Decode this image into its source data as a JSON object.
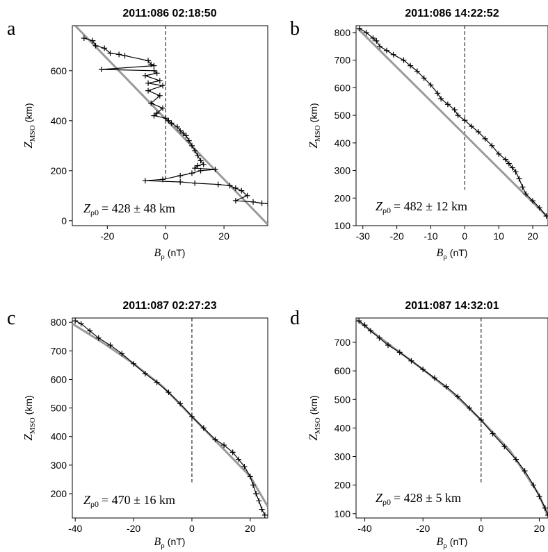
{
  "figure": {
    "panels": [
      {
        "letter": "a",
        "title": "2011:086 02:18:50",
        "ylabel_main": "Z",
        "ylabel_sub": "MSO",
        "ylabel_unit": "(km)",
        "xlabel_main": "B",
        "xlabel_sub": "ρ",
        "xlabel_unit": "(nT)",
        "fit_label_main": "Z",
        "fit_label_sub": "ρ0",
        "fit_label_value": "= 428 ± 48 km"
      },
      {
        "letter": "b",
        "title": "2011:086 14:22:52",
        "ylabel_main": "Z",
        "ylabel_sub": "MSO",
        "ylabel_unit": "(km)",
        "xlabel_main": "B",
        "xlabel_sub": "ρ",
        "xlabel_unit": "(nT)",
        "fit_label_main": "Z",
        "fit_label_sub": "ρ0",
        "fit_label_value": "= 482 ± 12 km"
      },
      {
        "letter": "c",
        "title": "2011:087 02:27:23",
        "ylabel_main": "Z",
        "ylabel_sub": "MSO",
        "ylabel_unit": "(km)",
        "xlabel_main": "B",
        "xlabel_sub": "ρ",
        "xlabel_unit": "(nT)",
        "fit_label_main": "Z",
        "fit_label_sub": "ρ0",
        "fit_label_value": "= 470 ± 16 km"
      },
      {
        "letter": "d",
        "title": "2011:087 14:32:01",
        "ylabel_main": "Z",
        "ylabel_sub": "MSO",
        "ylabel_unit": "(km)",
        "xlabel_main": "B",
        "xlabel_sub": "ρ",
        "xlabel_unit": "(nT)",
        "fit_label_main": "Z",
        "fit_label_sub": "ρ0",
        "fit_label_value": "= 428 ± 5 km"
      }
    ]
  },
  "colors": {
    "data": "#000000",
    "fit": "#9a9a9a",
    "zero_line": "#000000"
  },
  "chart_data": [
    {
      "type": "line",
      "panel": "a",
      "title": "2011:086 02:18:50",
      "xlabel": "Bρ (nT)",
      "ylabel": "ZMSO (km)",
      "xlim": [
        -32,
        35
      ],
      "ylim": [
        -20,
        780
      ],
      "xticks": [
        -20,
        0,
        20
      ],
      "yticks": [
        0,
        200,
        400,
        600
      ],
      "zero_line": {
        "x": 0,
        "y_range": [
          160,
          780
        ]
      },
      "fit_value_km": 428,
      "fit_uncertainty_km": 48,
      "series": [
        {
          "role": "measured",
          "markers": "+",
          "x": [
            -28,
            -25,
            -24,
            -21,
            -19,
            -16,
            -14,
            -6,
            -5,
            -4,
            -22,
            -4,
            -3,
            -7,
            -2,
            -6,
            -1,
            -6,
            -2,
            -5,
            -1,
            -3,
            -4,
            0,
            1,
            2,
            4,
            5,
            6,
            7,
            8,
            9,
            10,
            11,
            12,
            13,
            11,
            10,
            17,
            12,
            9,
            5,
            -1,
            -7,
            5,
            10,
            18,
            22,
            24,
            26,
            28,
            24,
            30,
            33,
            35
          ],
          "y": [
            730,
            720,
            700,
            690,
            670,
            665,
            660,
            640,
            625,
            620,
            605,
            600,
            590,
            580,
            560,
            550,
            540,
            520,
            500,
            470,
            450,
            430,
            420,
            410,
            400,
            390,
            375,
            360,
            350,
            340,
            320,
            300,
            280,
            260,
            240,
            225,
            220,
            210,
            205,
            200,
            190,
            180,
            165,
            160,
            155,
            150,
            145,
            140,
            130,
            120,
            100,
            80,
            75,
            70,
            68
          ]
        },
        {
          "role": "fit",
          "x": [
            -31,
            35
          ],
          "y": [
            780,
            -15
          ]
        }
      ]
    },
    {
      "type": "line",
      "panel": "b",
      "title": "2011:086 14:22:52",
      "xlabel": "Bρ (nT)",
      "ylabel": "ZMSO (km)",
      "xlim": [
        -32,
        24.5
      ],
      "ylim": [
        100,
        825
      ],
      "xticks": [
        -30,
        -20,
        -10,
        0,
        10,
        20
      ],
      "yticks": [
        100,
        200,
        300,
        400,
        500,
        600,
        700,
        800
      ],
      "zero_line": {
        "x": 0,
        "y_range": [
          230,
          825
        ]
      },
      "fit_value_km": 482,
      "fit_uncertainty_km": 12,
      "series": [
        {
          "role": "measured",
          "markers": "+",
          "x": [
            -31,
            -29,
            -27,
            -26,
            -25,
            -23,
            -21,
            -18,
            -16,
            -14,
            -12,
            -10,
            -8,
            -7,
            -5,
            -3,
            -2,
            0,
            2,
            4,
            6,
            8,
            10,
            12,
            13,
            14,
            15,
            16,
            17,
            18,
            20,
            22,
            24
          ],
          "y": [
            815,
            800,
            780,
            770,
            750,
            735,
            720,
            700,
            680,
            660,
            635,
            610,
            580,
            560,
            540,
            520,
            500,
            482,
            460,
            440,
            415,
            390,
            360,
            340,
            325,
            310,
            295,
            270,
            240,
            215,
            190,
            165,
            135
          ]
        },
        {
          "role": "fit",
          "x": [
            -31.5,
            24.5
          ],
          "y": [
            815,
            130
          ]
        }
      ]
    },
    {
      "type": "line",
      "panel": "c",
      "title": "2011:087 02:27:23",
      "xlabel": "Bρ (nT)",
      "ylabel": "ZMSO (km)",
      "xlim": [
        -41,
        26
      ],
      "ylim": [
        115,
        815
      ],
      "xticks": [
        -40,
        -20,
        0,
        20
      ],
      "yticks": [
        200,
        300,
        400,
        500,
        600,
        700,
        800
      ],
      "zero_line": {
        "x": 0,
        "y_range": [
          240,
          815
        ]
      },
      "fit_value_km": 470,
      "fit_uncertainty_km": 16,
      "series": [
        {
          "role": "measured",
          "markers": "+",
          "x": [
            -40,
            -38,
            -35,
            -32,
            -28,
            -24,
            -20,
            -16,
            -12,
            -8,
            -4,
            0,
            4,
            8,
            11,
            14,
            16,
            18,
            20,
            21,
            22,
            23,
            24,
            25
          ],
          "y": [
            805,
            795,
            770,
            745,
            720,
            690,
            655,
            620,
            590,
            555,
            515,
            470,
            430,
            390,
            370,
            345,
            320,
            295,
            260,
            230,
            200,
            175,
            145,
            125
          ]
        },
        {
          "role": "fit",
          "x": [
            -41,
            -30,
            -20,
            -10,
            0,
            10,
            20,
            26
          ],
          "y": [
            795,
            725,
            655,
            575,
            470,
            365,
            260,
            155
          ]
        }
      ]
    },
    {
      "type": "line",
      "panel": "d",
      "title": "2011:087 14:32:01",
      "xlabel": "Bρ (nT)",
      "ylabel": "ZMSO (km)",
      "xlim": [
        -43,
        23
      ],
      "ylim": [
        85,
        785
      ],
      "xticks": [
        -40,
        -20,
        0,
        20
      ],
      "yticks": [
        100,
        200,
        300,
        400,
        500,
        600,
        700
      ],
      "zero_line": {
        "x": 0,
        "y_range": [
          210,
          785
        ]
      },
      "fit_value_km": 428,
      "fit_uncertainty_km": 5,
      "series": [
        {
          "role": "measured",
          "markers": "+",
          "x": [
            -42,
            -40,
            -38,
            -35,
            -32,
            -28,
            -24,
            -20,
            -16,
            -12,
            -8,
            -4,
            0,
            4,
            8,
            12,
            15,
            18,
            20,
            22,
            23
          ],
          "y": [
            775,
            760,
            740,
            715,
            690,
            665,
            635,
            605,
            575,
            545,
            510,
            470,
            428,
            380,
            335,
            290,
            250,
            200,
            160,
            120,
            95
          ]
        },
        {
          "role": "fit",
          "x": [
            -43,
            -30,
            -20,
            -10,
            0,
            10,
            20,
            23
          ],
          "y": [
            780,
            680,
            605,
            525,
            428,
            320,
            165,
            90
          ]
        }
      ]
    }
  ]
}
